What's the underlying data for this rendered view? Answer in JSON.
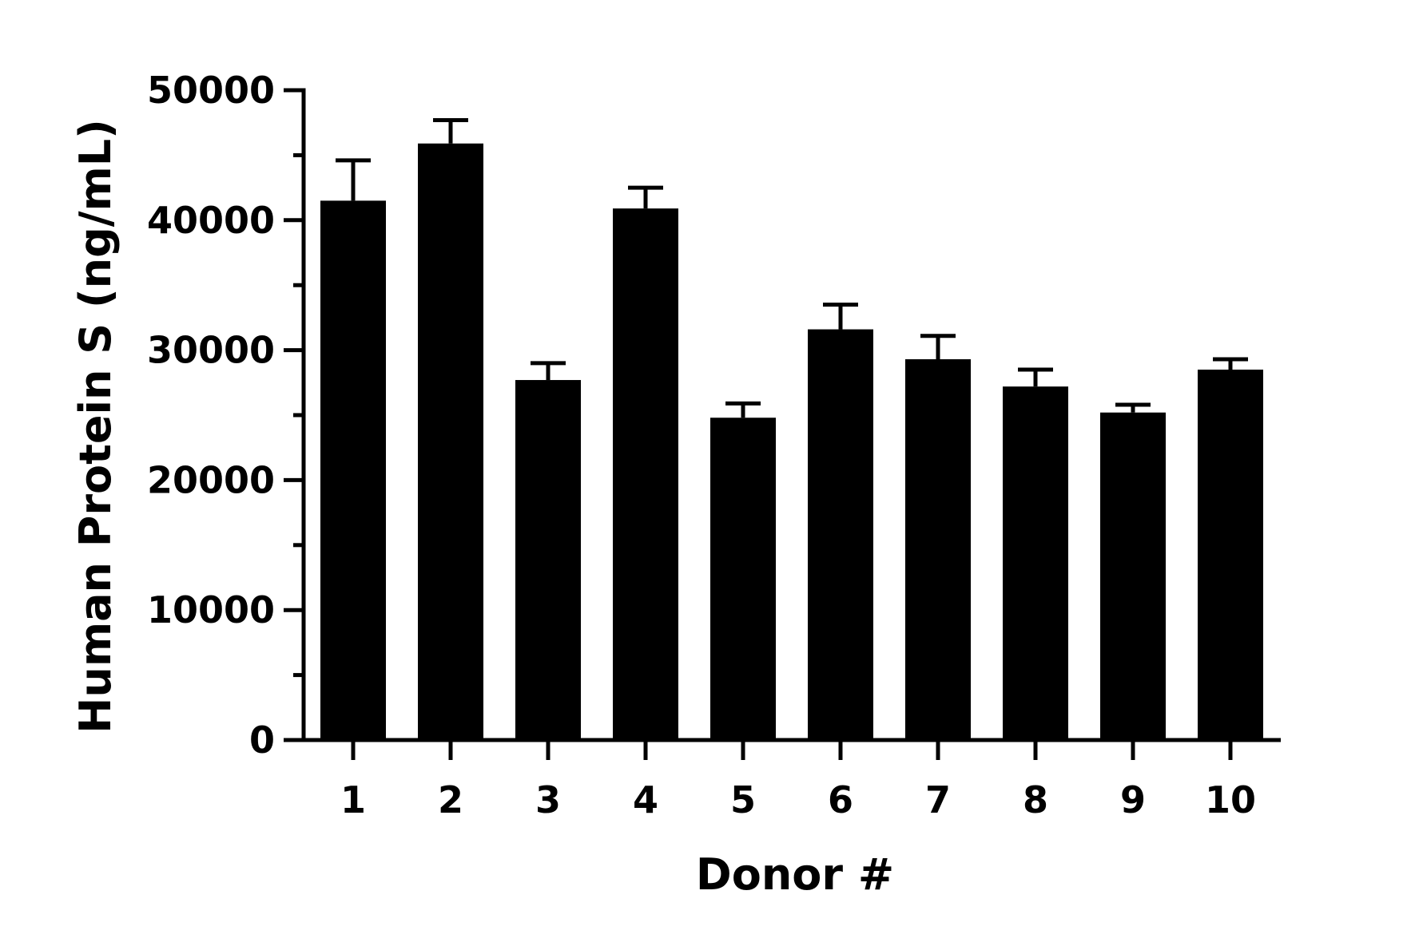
{
  "chart_data": {
    "type": "bar",
    "title": "",
    "xlabel": "Donor #",
    "ylabel": "Human Protein S (ng/mL)",
    "categories": [
      "1",
      "2",
      "3",
      "4",
      "5",
      "6",
      "7",
      "8",
      "9",
      "10"
    ],
    "values": [
      41500,
      45900,
      27700,
      40900,
      24800,
      31600,
      29300,
      27200,
      25200,
      28500
    ],
    "errors": [
      3100,
      1800,
      1300,
      1600,
      1100,
      1900,
      1800,
      1300,
      600,
      800
    ],
    "ylim": [
      0,
      50000
    ],
    "yticks": [
      0,
      10000,
      20000,
      30000,
      40000,
      50000
    ],
    "ytick_labels": [
      "0",
      "10000",
      "20000",
      "30000",
      "40000",
      "50000"
    ],
    "minor_ytick_step": 5000,
    "grid": false,
    "bar_color": "#000000"
  }
}
